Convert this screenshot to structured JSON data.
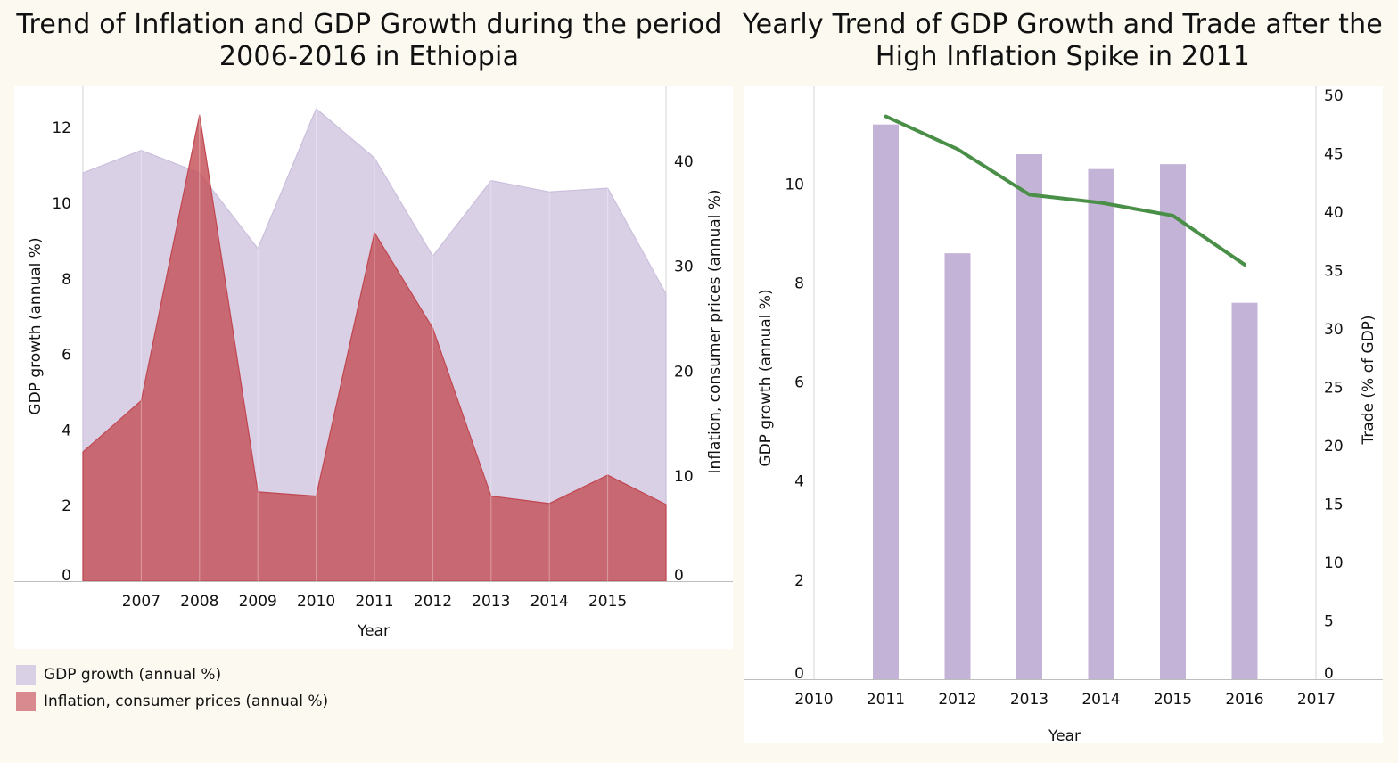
{
  "titles": {
    "left": "Trend of Inflation and GDP Growth during the period 2006-2016 in Ethiopia",
    "right": "Yearly Trend of GDP Growth and Trade after the High Inflation Spike in 2011"
  },
  "chart_data": [
    {
      "type": "area",
      "title": "Trend of Inflation and GDP Growth during the period 2006-2016 in Ethiopia",
      "xlabel": "Year",
      "ylabel_left": "GDP growth (annual %)",
      "ylabel_right": "Inflation, consumer prices (annual %)",
      "x": [
        2006,
        2007,
        2008,
        2009,
        2010,
        2011,
        2012,
        2013,
        2014,
        2015,
        2016
      ],
      "x_tick_labels": [
        "2007",
        "2008",
        "2009",
        "2010",
        "2011",
        "2012",
        "2013",
        "2014",
        "2015"
      ],
      "y_left_ticks": [
        "0",
        "2",
        "4",
        "6",
        "8",
        "10",
        "12"
      ],
      "y_right_ticks": [
        "0",
        "10",
        "20",
        "30",
        "40"
      ],
      "ylim_left": [
        0,
        12.5
      ],
      "ylim_right": [
        0,
        45
      ],
      "series": [
        {
          "name": "GDP growth (annual %)",
          "axis": "left",
          "color": "#d9d0e6",
          "values": [
            10.8,
            11.4,
            10.8,
            8.8,
            12.5,
            11.2,
            8.6,
            10.6,
            10.3,
            10.4,
            7.6
          ]
        },
        {
          "name": "Inflation, consumer prices (annual %)",
          "axis": "right",
          "color": "#cc6b71",
          "values": [
            12.3,
            17.2,
            44.4,
            8.5,
            8.1,
            33.2,
            24.1,
            8.1,
            7.4,
            10.1,
            7.3
          ]
        }
      ],
      "legend_position": "bottom-left",
      "grid": false
    },
    {
      "type": "bar",
      "title": "Yearly Trend of GDP Growth and Trade after the High Inflation Spike in 2011",
      "xlabel": "Year",
      "ylabel_left": "GDP growth (annual %)",
      "ylabel_right": "Trade (% of GDP)",
      "x_tick_labels": [
        "2010",
        "2011",
        "2012",
        "2013",
        "2014",
        "2015",
        "2016",
        "2017"
      ],
      "categories": [
        2011,
        2012,
        2013,
        2014,
        2015,
        2016
      ],
      "y_left_ticks": [
        "0",
        "2",
        "4",
        "6",
        "8",
        "10"
      ],
      "y_right_ticks": [
        "0",
        "5",
        "10",
        "15",
        "20",
        "25",
        "30",
        "35",
        "40",
        "45",
        "50"
      ],
      "ylim_left": [
        0,
        11.5
      ],
      "ylim_right": [
        0,
        50
      ],
      "series": [
        {
          "name": "GDP growth (annual %)",
          "type": "bar",
          "axis": "left",
          "color": "#c3b3d6",
          "values": [
            11.2,
            8.6,
            10.6,
            10.3,
            10.4,
            7.6
          ]
        },
        {
          "name": "Trade (% of GDP)",
          "type": "line",
          "axis": "right",
          "color": "#4a8f47",
          "values": [
            48.2,
            45.4,
            41.5,
            40.8,
            39.7,
            35.5
          ]
        }
      ],
      "grid": false
    }
  ],
  "legend": [
    {
      "label": "GDP growth (annual %)",
      "color": "#d9d0e6"
    },
    {
      "label": "Inflation, consumer prices (annual %)",
      "color": "#d98a8e"
    }
  ]
}
